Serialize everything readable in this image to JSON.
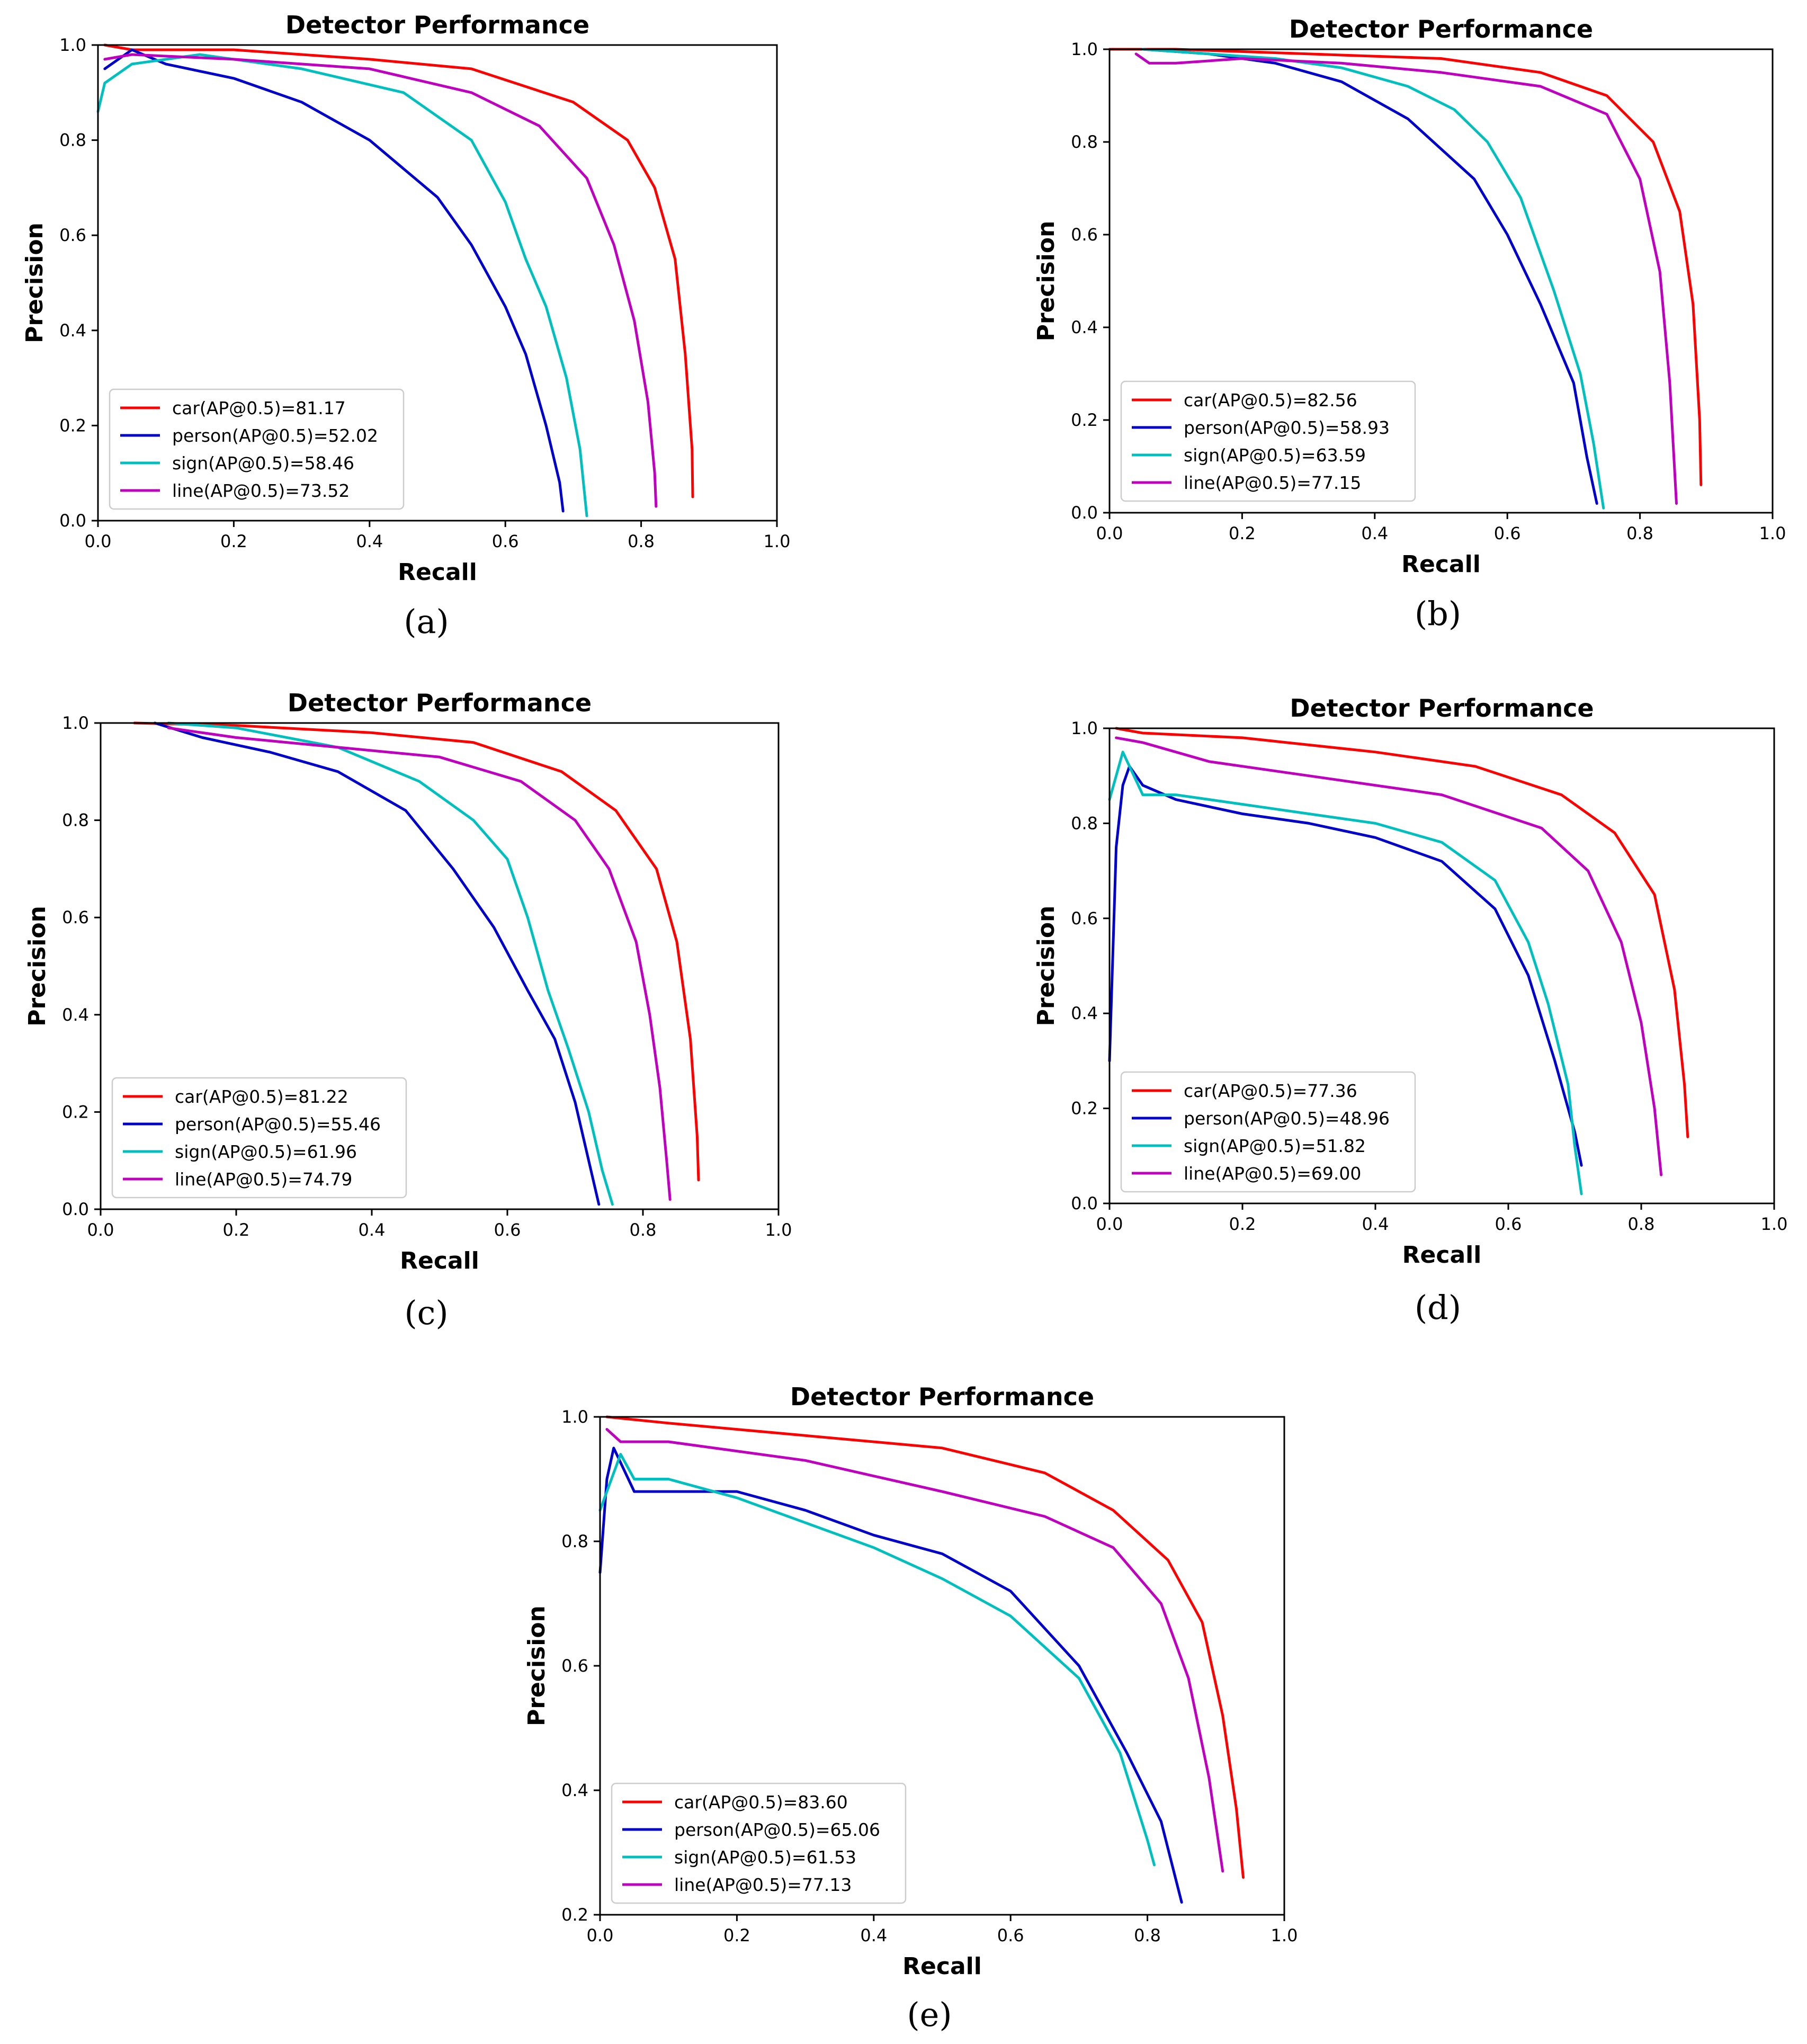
{
  "colors": {
    "car": "#ff0000",
    "person": "#0000cc",
    "sign": "#00bfbf",
    "line": "#bf00bf"
  },
  "chart_data": [
    {
      "panel": "(a)",
      "type": "line",
      "title": "Detector Performance",
      "xlabel": "Recall",
      "ylabel": "Precision",
      "xlim": [
        0.0,
        1.0
      ],
      "ylim": [
        0.0,
        1.0
      ],
      "xticks": [
        "0.0",
        "0.2",
        "0.4",
        "0.6",
        "0.8",
        "1.0"
      ],
      "yticks": [
        "0.0",
        "0.2",
        "0.4",
        "0.6",
        "0.8",
        "1.0"
      ],
      "legend_position": "lower-left",
      "series": [
        {
          "name": "car",
          "label": "car(AP@0.5)=81.17",
          "color": "#ff0000",
          "x": [
            0.01,
            0.05,
            0.2,
            0.4,
            0.55,
            0.7,
            0.78,
            0.82,
            0.85,
            0.865,
            0.875,
            0.876
          ],
          "y": [
            1.0,
            0.99,
            0.99,
            0.97,
            0.95,
            0.88,
            0.8,
            0.7,
            0.55,
            0.35,
            0.15,
            0.05
          ]
        },
        {
          "name": "person",
          "label": "person(AP@0.5)=52.02",
          "color": "#0000cc",
          "x": [
            0.01,
            0.05,
            0.1,
            0.2,
            0.3,
            0.4,
            0.5,
            0.55,
            0.6,
            0.63,
            0.66,
            0.68,
            0.685
          ],
          "y": [
            0.95,
            0.99,
            0.96,
            0.93,
            0.88,
            0.8,
            0.68,
            0.58,
            0.45,
            0.35,
            0.2,
            0.08,
            0.02
          ]
        },
        {
          "name": "sign",
          "label": "sign(AP@0.5)=58.46",
          "color": "#00bfbf",
          "x": [
            0.0,
            0.01,
            0.05,
            0.15,
            0.3,
            0.45,
            0.55,
            0.6,
            0.63,
            0.66,
            0.69,
            0.71,
            0.72
          ],
          "y": [
            0.86,
            0.92,
            0.96,
            0.98,
            0.95,
            0.9,
            0.8,
            0.67,
            0.55,
            0.45,
            0.3,
            0.15,
            0.01
          ]
        },
        {
          "name": "line",
          "label": "line(AP@0.5)=73.52",
          "color": "#bf00bf",
          "x": [
            0.01,
            0.05,
            0.2,
            0.4,
            0.55,
            0.65,
            0.72,
            0.76,
            0.79,
            0.81,
            0.82,
            0.822
          ],
          "y": [
            0.97,
            0.98,
            0.97,
            0.95,
            0.9,
            0.83,
            0.72,
            0.58,
            0.42,
            0.25,
            0.1,
            0.03
          ]
        }
      ]
    },
    {
      "panel": "(b)",
      "type": "line",
      "title": "Detector Performance",
      "xlabel": "Recall",
      "ylabel": "Precision",
      "xlim": [
        0.0,
        1.0
      ],
      "ylim": [
        0.0,
        1.0
      ],
      "xticks": [
        "0.0",
        "0.2",
        "0.4",
        "0.6",
        "0.8",
        "1.0"
      ],
      "yticks": [
        "0.0",
        "0.2",
        "0.4",
        "0.6",
        "0.8",
        "1.0"
      ],
      "legend_position": "lower-left",
      "series": [
        {
          "name": "car",
          "label": "car(AP@0.5)=82.56",
          "color": "#ff0000",
          "x": [
            0.0,
            0.1,
            0.3,
            0.5,
            0.65,
            0.75,
            0.82,
            0.86,
            0.88,
            0.89,
            0.892
          ],
          "y": [
            1.0,
            1.0,
            0.99,
            0.98,
            0.95,
            0.9,
            0.8,
            0.65,
            0.45,
            0.2,
            0.06
          ]
        },
        {
          "name": "person",
          "label": "person(AP@0.5)=58.93",
          "color": "#0000cc",
          "x": [
            0.05,
            0.15,
            0.25,
            0.35,
            0.45,
            0.55,
            0.6,
            0.65,
            0.7,
            0.72,
            0.735
          ],
          "y": [
            1.0,
            0.99,
            0.97,
            0.93,
            0.85,
            0.72,
            0.6,
            0.45,
            0.28,
            0.12,
            0.02
          ]
        },
        {
          "name": "sign",
          "label": "sign(AP@0.5)=63.59",
          "color": "#00bfbf",
          "x": [
            0.05,
            0.15,
            0.25,
            0.35,
            0.45,
            0.52,
            0.57,
            0.62,
            0.67,
            0.71,
            0.73,
            0.745
          ],
          "y": [
            1.0,
            0.99,
            0.98,
            0.96,
            0.92,
            0.87,
            0.8,
            0.68,
            0.48,
            0.3,
            0.15,
            0.01
          ]
        },
        {
          "name": "line",
          "label": "line(AP@0.5)=77.15",
          "color": "#bf00bf",
          "x": [
            0.04,
            0.06,
            0.1,
            0.2,
            0.35,
            0.5,
            0.65,
            0.75,
            0.8,
            0.83,
            0.845,
            0.855
          ],
          "y": [
            0.99,
            0.97,
            0.97,
            0.98,
            0.97,
            0.95,
            0.92,
            0.86,
            0.72,
            0.52,
            0.28,
            0.02
          ]
        }
      ]
    },
    {
      "panel": "(c)",
      "type": "line",
      "title": "Detector Performance",
      "xlabel": "Recall",
      "ylabel": "Precision",
      "xlim": [
        0.0,
        1.0
      ],
      "ylim": [
        0.0,
        1.0
      ],
      "xticks": [
        "0.0",
        "0.2",
        "0.4",
        "0.6",
        "0.8",
        "1.0"
      ],
      "yticks": [
        "0.0",
        "0.2",
        "0.4",
        "0.6",
        "0.8",
        "1.0"
      ],
      "legend_position": "lower-left",
      "series": [
        {
          "name": "car",
          "label": "car(AP@0.5)=81.22",
          "color": "#ff0000",
          "x": [
            0.05,
            0.2,
            0.4,
            0.55,
            0.68,
            0.76,
            0.82,
            0.85,
            0.87,
            0.88,
            0.882
          ],
          "y": [
            1.0,
            0.995,
            0.98,
            0.96,
            0.9,
            0.82,
            0.7,
            0.55,
            0.35,
            0.15,
            0.06
          ]
        },
        {
          "name": "person",
          "label": "person(AP@0.5)=55.46",
          "color": "#0000cc",
          "x": [
            0.08,
            0.15,
            0.25,
            0.35,
            0.45,
            0.52,
            0.58,
            0.63,
            0.67,
            0.7,
            0.72,
            0.735
          ],
          "y": [
            1.0,
            0.97,
            0.94,
            0.9,
            0.82,
            0.7,
            0.58,
            0.45,
            0.35,
            0.22,
            0.1,
            0.01
          ]
        },
        {
          "name": "sign",
          "label": "sign(AP@0.5)=61.96",
          "color": "#00bfbf",
          "x": [
            0.1,
            0.2,
            0.35,
            0.47,
            0.55,
            0.6,
            0.63,
            0.66,
            0.69,
            0.72,
            0.74,
            0.755
          ],
          "y": [
            1.0,
            0.99,
            0.95,
            0.88,
            0.8,
            0.72,
            0.6,
            0.45,
            0.33,
            0.2,
            0.08,
            0.01
          ]
        },
        {
          "name": "line",
          "label": "line(AP@0.5)=74.79",
          "color": "#bf00bf",
          "x": [
            0.1,
            0.2,
            0.35,
            0.5,
            0.62,
            0.7,
            0.75,
            0.79,
            0.81,
            0.825,
            0.835,
            0.84
          ],
          "y": [
            0.99,
            0.97,
            0.95,
            0.93,
            0.88,
            0.8,
            0.7,
            0.55,
            0.4,
            0.25,
            0.1,
            0.02
          ]
        }
      ]
    },
    {
      "panel": "(d)",
      "type": "line",
      "title": "Detector Performance",
      "xlabel": "Recall",
      "ylabel": "Precision",
      "xlim": [
        0.0,
        1.0
      ],
      "ylim": [
        0.0,
        1.0
      ],
      "xticks": [
        "0.0",
        "0.2",
        "0.4",
        "0.6",
        "0.8",
        "1.0"
      ],
      "yticks": [
        "0.0",
        "0.2",
        "0.4",
        "0.6",
        "0.8",
        "1.0"
      ],
      "legend_position": "lower-left",
      "series": [
        {
          "name": "car",
          "label": "car(AP@0.5)=77.36",
          "color": "#ff0000",
          "x": [
            0.01,
            0.05,
            0.2,
            0.4,
            0.55,
            0.68,
            0.76,
            0.82,
            0.85,
            0.865,
            0.87
          ],
          "y": [
            1.0,
            0.99,
            0.98,
            0.95,
            0.92,
            0.86,
            0.78,
            0.65,
            0.45,
            0.25,
            0.14
          ]
        },
        {
          "name": "person",
          "label": "person(AP@0.5)=48.96",
          "color": "#0000cc",
          "x": [
            0.0,
            0.01,
            0.02,
            0.03,
            0.05,
            0.1,
            0.2,
            0.3,
            0.4,
            0.5,
            0.58,
            0.63,
            0.67,
            0.7,
            0.71
          ],
          "y": [
            0.3,
            0.75,
            0.88,
            0.92,
            0.88,
            0.85,
            0.82,
            0.8,
            0.77,
            0.72,
            0.62,
            0.48,
            0.3,
            0.15,
            0.08
          ]
        },
        {
          "name": "sign",
          "label": "sign(AP@0.5)=51.82",
          "color": "#00bfbf",
          "x": [
            0.0,
            0.01,
            0.02,
            0.03,
            0.05,
            0.1,
            0.2,
            0.3,
            0.4,
            0.5,
            0.58,
            0.63,
            0.66,
            0.69,
            0.7,
            0.71
          ],
          "y": [
            0.85,
            0.9,
            0.95,
            0.92,
            0.86,
            0.86,
            0.84,
            0.82,
            0.8,
            0.76,
            0.68,
            0.55,
            0.42,
            0.25,
            0.12,
            0.02
          ]
        },
        {
          "name": "line",
          "label": "line(AP@0.5)=69.00",
          "color": "#bf00bf",
          "x": [
            0.01,
            0.05,
            0.15,
            0.3,
            0.5,
            0.65,
            0.72,
            0.77,
            0.8,
            0.82,
            0.83
          ],
          "y": [
            0.98,
            0.97,
            0.93,
            0.9,
            0.86,
            0.79,
            0.7,
            0.55,
            0.38,
            0.2,
            0.06
          ]
        }
      ]
    },
    {
      "panel": "(e)",
      "type": "line",
      "title": "Detector Performance",
      "xlabel": "Recall",
      "ylabel": "Precision",
      "xlim": [
        0.0,
        1.0
      ],
      "ylim": [
        0.2,
        1.0
      ],
      "xticks": [
        "0.0",
        "0.2",
        "0.4",
        "0.6",
        "0.8",
        "1.0"
      ],
      "yticks": [
        "0.2",
        "0.4",
        "0.6",
        "0.8",
        "1.0"
      ],
      "legend_position": "lower-left",
      "series": [
        {
          "name": "car",
          "label": "car(AP@0.5)=83.60",
          "color": "#ff0000",
          "x": [
            0.01,
            0.1,
            0.3,
            0.5,
            0.65,
            0.75,
            0.83,
            0.88,
            0.91,
            0.93,
            0.94
          ],
          "y": [
            1.0,
            0.99,
            0.97,
            0.95,
            0.91,
            0.85,
            0.77,
            0.67,
            0.52,
            0.37,
            0.26
          ]
        },
        {
          "name": "person",
          "label": "person(AP@0.5)=65.06",
          "color": "#0000cc",
          "x": [
            0.0,
            0.01,
            0.02,
            0.05,
            0.1,
            0.2,
            0.3,
            0.4,
            0.5,
            0.6,
            0.7,
            0.77,
            0.82,
            0.85
          ],
          "y": [
            0.75,
            0.9,
            0.95,
            0.88,
            0.88,
            0.88,
            0.85,
            0.81,
            0.78,
            0.72,
            0.6,
            0.46,
            0.35,
            0.22
          ]
        },
        {
          "name": "sign",
          "label": "sign(AP@0.5)=61.53",
          "color": "#00bfbf",
          "x": [
            0.0,
            0.01,
            0.03,
            0.05,
            0.1,
            0.2,
            0.3,
            0.4,
            0.5,
            0.6,
            0.7,
            0.76,
            0.8,
            0.81
          ],
          "y": [
            0.85,
            0.88,
            0.94,
            0.9,
            0.9,
            0.87,
            0.83,
            0.79,
            0.74,
            0.68,
            0.58,
            0.46,
            0.32,
            0.28
          ]
        },
        {
          "name": "line",
          "label": "line(AP@0.5)=77.13",
          "color": "#bf00bf",
          "x": [
            0.01,
            0.03,
            0.1,
            0.3,
            0.5,
            0.65,
            0.75,
            0.82,
            0.86,
            0.89,
            0.91
          ],
          "y": [
            0.98,
            0.96,
            0.96,
            0.93,
            0.88,
            0.84,
            0.79,
            0.7,
            0.58,
            0.42,
            0.27
          ]
        }
      ]
    }
  ]
}
